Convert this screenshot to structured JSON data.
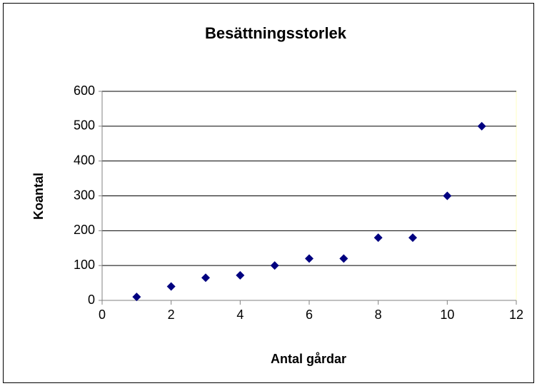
{
  "chart_data": {
    "type": "scatter",
    "title": "Besättningsstorlek",
    "x_label": "Antal gårdar",
    "y_label": "Koantal",
    "x": [
      1,
      2,
      3,
      4,
      5,
      6,
      7,
      8,
      9,
      10,
      11
    ],
    "values": [
      10,
      40,
      65,
      72,
      100,
      120,
      120,
      180,
      180,
      300,
      500
    ],
    "color": "#000080",
    "xlim": [
      0,
      12
    ],
    "xticks": [
      0,
      2,
      4,
      6,
      8,
      10,
      12
    ],
    "ylim": [
      0,
      600
    ],
    "yticks": [
      0,
      100,
      200,
      300,
      400,
      500,
      600
    ],
    "grid": true
  }
}
